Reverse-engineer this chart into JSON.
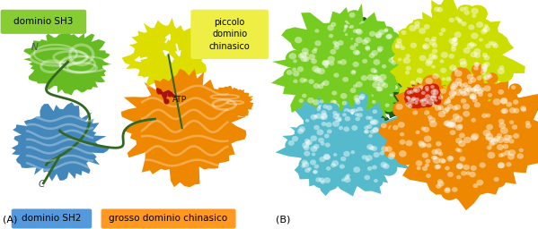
{
  "fig_width": 5.99,
  "fig_height": 2.56,
  "dpi": 100,
  "background_color": "#ffffff",
  "panel_A_label": "(A)",
  "panel_B_label": "(B)",
  "labels": {
    "sh3": "dominio SH3",
    "piccolo": "piccolo\ndominio\nchinasico",
    "sh2": "dominio SH2",
    "grosso": "grosso dominio chinasico",
    "N": "N",
    "C": "C",
    "ATP": "ATP"
  },
  "label_boxes": {
    "sh3_bg": "#88cc33",
    "piccolo_bg": "#eeee44",
    "sh2_bg": "#5599dd",
    "grosso_bg": "#ff9922"
  },
  "domain_colors": {
    "sh3": "#66bb22",
    "piccolo": "#dddd00",
    "sh2": "#4488bb",
    "grosso": "#ee8800",
    "atp": "#aa1111",
    "linker": "#336622",
    "highlight": "#ffffff"
  },
  "sphere_colors": {
    "green_light": "#77cc22",
    "green_dark": "#1a5c1a",
    "yellow": "#ccdd00",
    "orange": "#ee8800",
    "cyan": "#55bbcc",
    "red": "#cc2200",
    "cyan_light": "#88ddee"
  },
  "panel_split": 0.505
}
